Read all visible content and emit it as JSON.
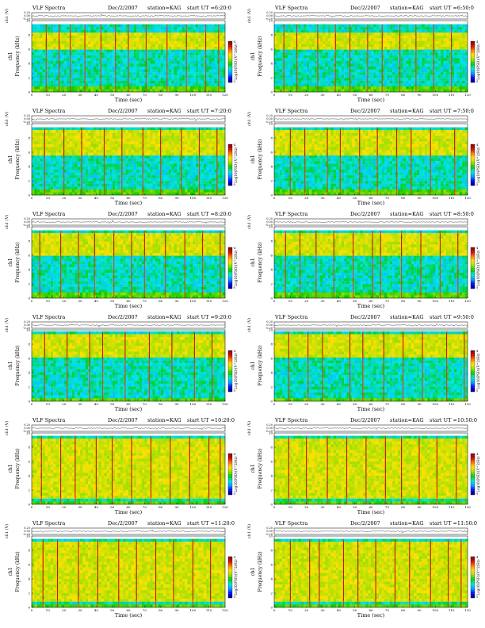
{
  "figure": {
    "background": "#ffffff",
    "colormap": [
      "#000080",
      "#0000ff",
      "#00a0ff",
      "#00e5e5",
      "#00c800",
      "#a0e000",
      "#ffe000",
      "#ff7f00",
      "#d00000",
      "#800000"
    ]
  },
  "chart_data": [
    {
      "type": "heatmap",
      "title": "VLF Spectra",
      "date": "Dec/2/2007",
      "station": "station=KAG",
      "start": "start UT =6:20:0",
      "ylabel_top": "ch1 (V)",
      "yticks_top": [
        "0.20",
        "0.00",
        "-0.20"
      ],
      "ylim_top": [
        -0.2,
        0.2
      ],
      "ylabel_main": "Frequency (kHz)",
      "ylabel_channel": "ch1",
      "yticks_main": [
        "0",
        "2",
        "4",
        "6",
        "8",
        "10"
      ],
      "ylim_main": [
        0,
        10
      ],
      "xlabel": "Time (sec)",
      "xticks": [
        "0",
        "10",
        "20",
        "30",
        "40",
        "50",
        "60",
        "70",
        "80",
        "90",
        "100",
        "110",
        "120"
      ],
      "xlim": [
        0,
        120
      ],
      "colorbar_label": "Log10(PSD)(V^2/Hz)",
      "colorbar_ticks": [
        "-4",
        "-5"
      ],
      "colorbar_range": [
        -5,
        -4
      ],
      "band_top_khz": 9.5,
      "emission_band_khz": [
        6.0,
        8.2
      ],
      "vertical_streaks_sec": [
        9,
        17,
        24,
        33,
        43,
        52,
        60,
        71,
        84,
        96,
        108,
        116
      ]
    },
    {
      "type": "heatmap",
      "title": "VLF Spectra",
      "date": "Dec/2/2007",
      "station": "station=KAG",
      "start": "start UT =6:50:0",
      "ylabel_top": "ch1 (V)",
      "yticks_top": [
        "0.20",
        "0.00",
        "-0.20"
      ],
      "ylim_top": [
        -0.2,
        0.2
      ],
      "ylabel_main": "Frequency (kHz)",
      "ylabel_channel": "ch1",
      "yticks_main": [
        "0",
        "2",
        "4",
        "6",
        "8",
        "10"
      ],
      "ylim_main": [
        0,
        10
      ],
      "xlabel": "Time (sec)",
      "xticks": [
        "0",
        "10",
        "20",
        "30",
        "40",
        "50",
        "60",
        "70",
        "80",
        "90",
        "100",
        "110",
        "120"
      ],
      "xlim": [
        0,
        120
      ],
      "colorbar_label": "Log10(PSD)(V^2/Hz)",
      "colorbar_ticks": [
        "-4",
        "-5"
      ],
      "colorbar_range": [
        -5,
        -4
      ],
      "band_top_khz": 9.5,
      "emission_band_khz": [
        6.0,
        8.2
      ],
      "vertical_streaks_sec": [
        6,
        14,
        27,
        38,
        47,
        58,
        67,
        78,
        88,
        99,
        110
      ]
    },
    {
      "type": "heatmap",
      "title": "VLF Spectra",
      "date": "Dec/2/2007",
      "station": "station=KAG",
      "start": "start UT =7:20:0",
      "ylabel_top": "ch1 (V)",
      "yticks_top": [
        "0.20",
        "0.00",
        "-0.20"
      ],
      "ylim_top": [
        -0.2,
        0.2
      ],
      "ylabel_main": "Frequency (kHz)",
      "ylabel_channel": "ch1",
      "yticks_main": [
        "0",
        "2",
        "4",
        "6",
        "8",
        "10"
      ],
      "ylim_main": [
        0,
        10
      ],
      "xlabel": "Time (sec)",
      "xticks": [
        "0",
        "10",
        "20",
        "30",
        "40",
        "50",
        "60",
        "70",
        "80",
        "90",
        "100",
        "110",
        "120"
      ],
      "xlim": [
        0,
        120
      ],
      "colorbar_label": "Log10(PSD)(V^2/Hz)",
      "colorbar_ticks": [
        "-4",
        "-5"
      ],
      "colorbar_range": [
        -5,
        -4
      ],
      "band_top_khz": 9.5,
      "emission_band_khz": [
        5.5,
        9.2
      ],
      "vertical_streaks_sec": [
        8,
        20,
        31,
        45,
        56,
        69,
        80,
        93,
        104,
        115
      ]
    },
    {
      "type": "heatmap",
      "title": "VLF Spectra",
      "date": "Dec/2/2007",
      "station": "station=KAG",
      "start": "start UT =7:50:0",
      "ylabel_top": "ch1 (V)",
      "yticks_top": [
        "0.20",
        "0.00",
        "-0.20"
      ],
      "ylim_top": [
        -0.2,
        0.2
      ],
      "ylabel_main": "Frequency (kHz)",
      "ylabel_channel": "ch1",
      "yticks_main": [
        "0",
        "2",
        "4",
        "6",
        "8",
        "10"
      ],
      "ylim_main": [
        0,
        10
      ],
      "xlabel": "Time (sec)",
      "xticks": [
        "0",
        "10",
        "20",
        "30",
        "40",
        "50",
        "60",
        "70",
        "80",
        "90",
        "100",
        "110",
        "120"
      ],
      "xlim": [
        0,
        120
      ],
      "colorbar_label": "Log10(PSD)(V^2/Hz)",
      "colorbar_ticks": [
        "-4",
        "-5"
      ],
      "colorbar_range": [
        -5,
        -4
      ],
      "band_top_khz": 9.5,
      "emission_band_khz": [
        5.5,
        9.2
      ],
      "vertical_streaks_sec": [
        10,
        19,
        33,
        41,
        53,
        64,
        76,
        85,
        97,
        112
      ]
    },
    {
      "type": "heatmap",
      "title": "VLF Spectra",
      "date": "Dec/2/2007",
      "station": "station=KAG",
      "start": "start UT =8:20:0",
      "ylabel_top": "ch1 (V)",
      "yticks_top": [
        "0.20",
        "0.00",
        "-0.20"
      ],
      "ylim_top": [
        -0.2,
        0.2
      ],
      "ylabel_main": "Frequency (kHz)",
      "ylabel_channel": "ch1",
      "yticks_main": [
        "0",
        "2",
        "4",
        "6",
        "8",
        "10"
      ],
      "ylim_main": [
        0,
        10
      ],
      "xlabel": "Time (sec)",
      "xticks": [
        "0",
        "10",
        "20",
        "30",
        "40",
        "50",
        "60",
        "70",
        "80",
        "90",
        "100",
        "110",
        "120"
      ],
      "xlim": [
        0,
        120
      ],
      "colorbar_label": "Log10(PSD)(V^2/Hz)",
      "colorbar_ticks": [
        "-4",
        "-5"
      ],
      "colorbar_range": [
        -5,
        -4
      ],
      "band_top_khz": 9.5,
      "emission_band_khz": [
        6.0,
        9.0
      ],
      "vertical_streaks_sec": [
        5,
        18,
        29,
        39,
        51,
        62,
        70,
        83,
        95,
        106,
        117
      ]
    },
    {
      "type": "heatmap",
      "title": "VLF Spectra",
      "date": "Dec/2/2007",
      "station": "station=KAG",
      "start": "start UT =8:50:0",
      "ylabel_top": "ch1 (V)",
      "yticks_top": [
        "0.20",
        "0.00",
        "-0.20"
      ],
      "ylim_top": [
        -0.2,
        0.2
      ],
      "ylabel_main": "Frequency (kHz)",
      "ylabel_channel": "ch1",
      "yticks_main": [
        "0",
        "2",
        "4",
        "6",
        "8",
        "10"
      ],
      "ylim_main": [
        0,
        10
      ],
      "xlabel": "Time (sec)",
      "xticks": [
        "0",
        "10",
        "20",
        "30",
        "40",
        "50",
        "60",
        "70",
        "80",
        "90",
        "100",
        "110",
        "120"
      ],
      "xlim": [
        0,
        120
      ],
      "colorbar_label": "Log10(PSD)(V^2/Hz)",
      "colorbar_ticks": [
        "-4",
        "-5"
      ],
      "colorbar_range": [
        -5,
        -4
      ],
      "band_top_khz": 9.5,
      "emission_band_khz": [
        6.0,
        9.0
      ],
      "vertical_streaks_sec": [
        7,
        16,
        26,
        37,
        49,
        61,
        66,
        79,
        91,
        103,
        114
      ]
    },
    {
      "type": "heatmap",
      "title": "VLF Spectra",
      "date": "Dec/2/2007",
      "station": "station=KAG",
      "start": "start UT =9:20:0",
      "ylabel_top": "ch1 (V)",
      "yticks_top": [
        "0.20",
        "0.00",
        "-0.20"
      ],
      "ylim_top": [
        -0.2,
        0.2
      ],
      "ylabel_main": "Frequency (kHz)",
      "ylabel_channel": "ch1",
      "yticks_main": [
        "0",
        "2",
        "4",
        "6",
        "8",
        "10"
      ],
      "ylim_main": [
        0,
        10
      ],
      "xlabel": "Time (sec)",
      "xticks": [
        "0",
        "10",
        "20",
        "30",
        "40",
        "50",
        "60",
        "70",
        "80",
        "90",
        "100",
        "110",
        "120"
      ],
      "xlim": [
        0,
        120
      ],
      "colorbar_label": "Log10(PSD)(V^2/Hz)",
      "colorbar_ticks": [
        "-4",
        "-5"
      ],
      "colorbar_range": [
        -5,
        -4
      ],
      "band_top_khz": 9.8,
      "emission_band_khz": [
        6.0,
        9.5
      ],
      "vertical_streaks_sec": [
        8,
        22,
        36,
        44,
        58,
        73,
        87,
        101,
        112
      ]
    },
    {
      "type": "heatmap",
      "title": "VLF Spectra",
      "date": "Dec/2/2007",
      "station": "station=KAG",
      "start": "start UT =9:50:0",
      "ylabel_top": "ch1 (V)",
      "yticks_top": [
        "0.20",
        "0.00",
        "-0.20"
      ],
      "ylim_top": [
        -0.2,
        0.2
      ],
      "ylabel_main": "Frequency (kHz)",
      "ylabel_channel": "ch1",
      "yticks_main": [
        "0",
        "2",
        "4",
        "6",
        "8",
        "10"
      ],
      "ylim_main": [
        0,
        10
      ],
      "xlabel": "Time (sec)",
      "xticks": [
        "0",
        "10",
        "20",
        "30",
        "40",
        "50",
        "60",
        "70",
        "80",
        "90",
        "100",
        "110",
        "120"
      ],
      "xlim": [
        0,
        120
      ],
      "colorbar_label": "Log10(PSD)(V^2/Hz)",
      "colorbar_ticks": [
        "-4",
        "-5"
      ],
      "colorbar_range": [
        -5,
        -4
      ],
      "band_top_khz": 9.8,
      "emission_band_khz": [
        6.0,
        9.5
      ],
      "vertical_streaks_sec": [
        9,
        21,
        30,
        47,
        55,
        68,
        80,
        92,
        107,
        118
      ]
    },
    {
      "type": "heatmap",
      "title": "VLF Spectra",
      "date": "Dec/2/2007",
      "station": "station=KAG",
      "start": "start UT =10:20:0",
      "ylabel_top": "ch1 (V)",
      "yticks_top": [
        "0.20",
        "0.00",
        "-0.20"
      ],
      "ylim_top": [
        -0.2,
        0.2
      ],
      "ylabel_main": "Frequency (kHz)",
      "ylabel_channel": "ch1",
      "yticks_main": [
        "0",
        "2",
        "4",
        "6",
        "8",
        "10"
      ],
      "ylim_main": [
        0,
        10
      ],
      "xlabel": "Time (sec)",
      "xticks": [
        "0",
        "10",
        "20",
        "30",
        "40",
        "50",
        "60",
        "70",
        "80",
        "90",
        "100",
        "110",
        "120"
      ],
      "xlim": [
        0,
        120
      ],
      "colorbar_label": "Log10(PSD)(V^2/Hz)",
      "colorbar_ticks": [
        "-4",
        "-5"
      ],
      "colorbar_range": [
        -5,
        -4
      ],
      "band_top_khz": 9.6,
      "emission_band_khz": [
        1.0,
        9.2
      ],
      "vertical_streaks_sec": [
        6,
        18,
        27,
        40,
        50,
        62,
        74,
        86,
        98,
        110,
        117
      ]
    },
    {
      "type": "heatmap",
      "title": "VLF Spectra",
      "date": "Dec/2/2007",
      "station": "station=KAG",
      "start": "start UT =10:50:0",
      "ylabel_top": "ch1 (V)",
      "yticks_top": [
        "0.20",
        "0.00",
        "-0.20"
      ],
      "ylim_top": [
        -0.2,
        0.2
      ],
      "ylabel_main": "Frequency (kHz)",
      "ylabel_channel": "ch1",
      "yticks_main": [
        "0",
        "2",
        "4",
        "6",
        "8",
        "10"
      ],
      "ylim_main": [
        0,
        10
      ],
      "xlabel": "Time (sec)",
      "xticks": [
        "0",
        "10",
        "20",
        "30",
        "40",
        "50",
        "60",
        "70",
        "80",
        "90",
        "100",
        "110",
        "120"
      ],
      "xlim": [
        0,
        120
      ],
      "colorbar_label": "Log10(PSD)(V^2/Hz)",
      "colorbar_ticks": [
        "-4",
        "-5"
      ],
      "colorbar_range": [
        -5,
        -4
      ],
      "band_top_khz": 9.6,
      "emission_band_khz": [
        1.0,
        9.2
      ],
      "vertical_streaks_sec": [
        9,
        20,
        33,
        45,
        57,
        69,
        79,
        90,
        101,
        113
      ]
    },
    {
      "type": "heatmap",
      "title": "VLF Spectra",
      "date": "Dec/2/2007",
      "station": "station=KAG",
      "start": "start UT =11:20:0",
      "ylabel_top": "ch1 (V)",
      "yticks_top": [
        "0.20",
        "0.00",
        "-0.20"
      ],
      "ylim_top": [
        -0.2,
        0.2
      ],
      "ylabel_main": "Frequency (kHz)",
      "ylabel_channel": "ch1",
      "yticks_main": [
        "0",
        "2",
        "4",
        "6",
        "8",
        "10"
      ],
      "ylim_main": [
        0,
        10
      ],
      "xlabel": "Time (sec)",
      "xticks": [
        "0",
        "10",
        "20",
        "30",
        "40",
        "50",
        "60",
        "70",
        "80",
        "90",
        "100",
        "110",
        "120"
      ],
      "xlim": [
        0,
        120
      ],
      "colorbar_label": "Log10(PSD)(V^2/Hz)",
      "colorbar_ticks": [
        "-4",
        "-5"
      ],
      "colorbar_range": [
        -5,
        -4
      ],
      "band_top_khz": 9.6,
      "emission_band_khz": [
        1.0,
        9.2
      ],
      "vertical_streaks_sec": [
        7,
        16,
        29,
        41,
        54,
        65,
        77,
        88,
        100,
        111
      ]
    },
    {
      "type": "heatmap",
      "title": "VLF Spectra",
      "date": "Dec/2/2007",
      "station": "station=KAG",
      "start": "start UT =11:50:0",
      "ylabel_top": "ch1 (V)",
      "yticks_top": [
        "0.20",
        "0.00",
        "-0.20"
      ],
      "ylim_top": [
        -0.2,
        0.2
      ],
      "ylabel_main": "Frequency (kHz)",
      "ylabel_channel": "ch1",
      "yticks_main": [
        "0",
        "2",
        "4",
        "6",
        "8",
        "10"
      ],
      "ylim_main": [
        0,
        10
      ],
      "xlabel": "Time (sec)",
      "xticks": [
        "0",
        "10",
        "20",
        "30",
        "40",
        "50",
        "60",
        "70",
        "80",
        "90",
        "100",
        "110",
        "120"
      ],
      "xlim": [
        0,
        120
      ],
      "colorbar_label": "Log10(PSD)(V^2/Hz)",
      "colorbar_ticks": [
        "-4",
        "-5"
      ],
      "colorbar_range": [
        -5,
        -4
      ],
      "band_top_khz": 9.6,
      "emission_band_khz": [
        1.0,
        9.2
      ],
      "vertical_streaks_sec": [
        10,
        22,
        28,
        43,
        52,
        63,
        75,
        84,
        97,
        108,
        116
      ]
    }
  ]
}
